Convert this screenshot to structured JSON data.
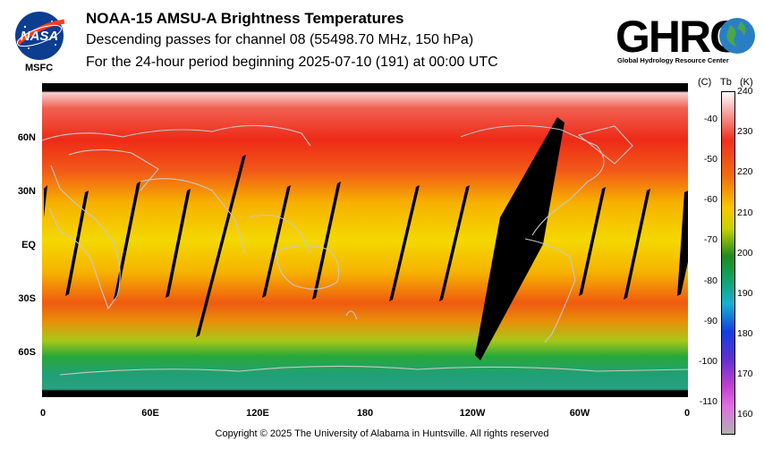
{
  "title": "NOAA-15 AMSU-A Brightness Temperatures",
  "subtitle1": "Descending passes for channel 08 (55498.70 MHz, 150 hPa)",
  "subtitle2": "For the 24-hour period beginning 2025-07-10 (191) at 00:00 UTC",
  "nasa": {
    "logo_text": "NASA",
    "label": "MSFC"
  },
  "ghrc": {
    "logo_text": "GHRC",
    "subtitle": "Global Hydrology Resource Center"
  },
  "lat_labels": [
    "60N",
    "30N",
    "EQ",
    "30S",
    "60S"
  ],
  "lon_labels": [
    "0",
    "60E",
    "120E",
    "180",
    "120W",
    "60W",
    "0"
  ],
  "colorbar": {
    "header_c": "(C)",
    "header_tb": "Tb",
    "header_k": "(K)",
    "celsius_labels": [
      "-40",
      "-50",
      "-60",
      "-70",
      "-80",
      "-90",
      "-100",
      "-110"
    ],
    "kelvin_labels": [
      "240",
      "230",
      "220",
      "210",
      "200",
      "190",
      "180",
      "170",
      "160"
    ],
    "range_k": [
      155,
      240
    ]
  },
  "copyright": "Copyright © 2025 The University of Alabama in Huntsville.  All rights reserved"
}
